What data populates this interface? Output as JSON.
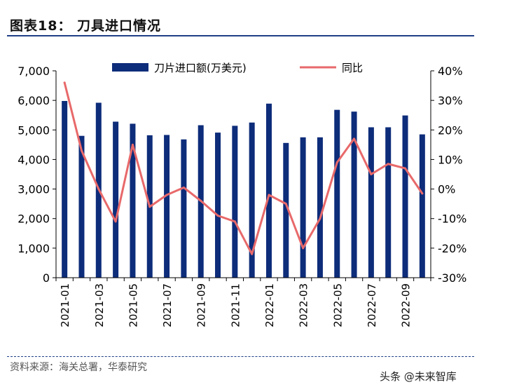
{
  "figure_title": "图表18：  刀具进口情况",
  "source": "资料来源：海关总署，华泰研究",
  "watermark": "头条 @未来智库",
  "colors": {
    "bar": "#0d2c7a",
    "line": "#e8696a",
    "axis": "#000000",
    "accent": "#1f3f86"
  },
  "chart_data": {
    "type": "bar",
    "title": "刀具进口情况",
    "categories": [
      "2021-01",
      "2021-02",
      "2021-03",
      "2021-04",
      "2021-05",
      "2021-06",
      "2021-07",
      "2021-08",
      "2021-09",
      "2021-10",
      "2021-11",
      "2021-12",
      "2022-01",
      "2022-02",
      "2022-03",
      "2022-04",
      "2022-05",
      "2022-06",
      "2022-07",
      "2022-08",
      "2022-09",
      "2022-10"
    ],
    "x_tick_labels": [
      "2021-01",
      "2021-03",
      "2021-05",
      "2021-07",
      "2021-09",
      "2021-11",
      "2022-01",
      "2022-03",
      "2022-05",
      "2022-07",
      "2022-09"
    ],
    "series": [
      {
        "name": "刀片进口额(万美元)",
        "type": "bar",
        "axis": "left",
        "values": [
          5980,
          4800,
          5920,
          5280,
          5210,
          4820,
          4830,
          4680,
          5160,
          4910,
          5140,
          5250,
          5890,
          4560,
          4750,
          4750,
          5680,
          5620,
          5090,
          5090,
          5490,
          4850
        ]
      },
      {
        "name": "同比",
        "type": "line",
        "axis": "right",
        "unit": "%",
        "values": [
          36,
          13,
          0,
          -11,
          15,
          -6,
          -2,
          0.5,
          -4,
          -9,
          -11,
          -22,
          -2,
          -5,
          -20,
          -10,
          9,
          17,
          5,
          8.5,
          7,
          -1.5
        ]
      }
    ],
    "y_left": {
      "min": 0,
      "max": 7000,
      "ticks": [
        "0",
        "1,000",
        "2,000",
        "3,000",
        "4,000",
        "5,000",
        "6,000",
        "7,000"
      ]
    },
    "y_right": {
      "min": -30,
      "max": 40,
      "ticks": [
        "-30%",
        "-20%",
        "-10%",
        "0%",
        "10%",
        "20%",
        "30%",
        "40%"
      ]
    },
    "legend": {
      "position": "top",
      "entries": [
        "刀片进口额(万美元)",
        "同比"
      ]
    },
    "grid": false
  }
}
